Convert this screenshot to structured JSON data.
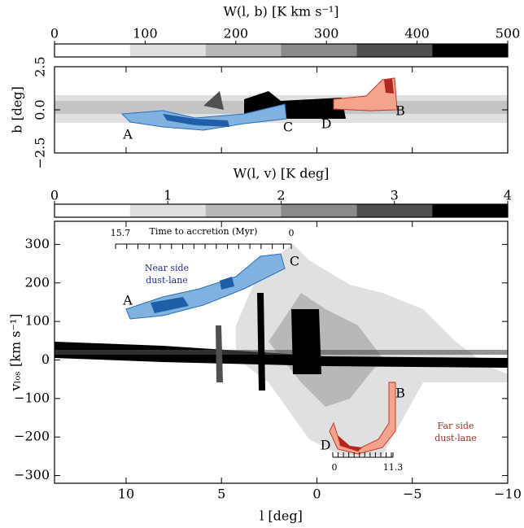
{
  "chart_data": [
    {
      "type": "heatmap",
      "colorbar": {
        "label": "W(l, b) [K km s⁻¹]",
        "lim": [
          0,
          500
        ],
        "ticks": [
          0,
          100,
          200,
          300,
          400,
          500
        ],
        "colors": [
          "#ffffff",
          "#e0e0e0",
          "#b8b8b8",
          "#8a8a8a",
          "#505050",
          "#000000"
        ]
      },
      "ylabel": "b [deg]",
      "xlim": [
        13.75,
        -10
      ],
      "xticks": [
        10,
        5,
        0,
        {
          "value": -5,
          "label": "−5"
        },
        {
          "value": -10,
          "label": "−10"
        }
      ],
      "ylim": [
        -2.5,
        2.5
      ],
      "yticks": [
        {
          "value": -2.5,
          "label": "−2.5"
        },
        {
          "value": 0,
          "label": "0.0"
        },
        {
          "value": 2.5,
          "label": "2.5"
        }
      ],
      "annotations": [
        "A",
        "B",
        "C",
        "D"
      ]
    },
    {
      "type": "heatmap",
      "colorbar": {
        "label": "W(l, v) [K deg]",
        "lim": [
          0,
          4
        ],
        "ticks": [
          0,
          1,
          2,
          3,
          4
        ],
        "colors": [
          "#ffffff",
          "#e0e0e0",
          "#b8b8b8",
          "#8a8a8a",
          "#505050",
          "#000000"
        ]
      },
      "xlabel": "l [deg]",
      "ylabel": "vₗₒₛ [km s⁻¹]",
      "xlim": [
        13.75,
        -10
      ],
      "xticks": [
        10,
        5,
        0,
        {
          "value": -5,
          "label": "−5"
        },
        {
          "value": -10,
          "label": "−10"
        }
      ],
      "ylim": [
        -320,
        360
      ],
      "yticks": [
        {
          "value": -300,
          "label": "−300"
        },
        {
          "value": -200,
          "label": "−200"
        },
        {
          "value": -100,
          "label": "−100"
        },
        0,
        100,
        200,
        300
      ],
      "annotations": [
        "A",
        "B",
        "C",
        "D"
      ],
      "near_side": {
        "label": "Near side dust-lane",
        "time_label": "Time to accretion (Myr)",
        "time_lim": [
          15.7,
          0
        ]
      },
      "far_side": {
        "label": "Far side dust-lane",
        "time_lim": [
          0,
          11.3
        ]
      }
    }
  ]
}
